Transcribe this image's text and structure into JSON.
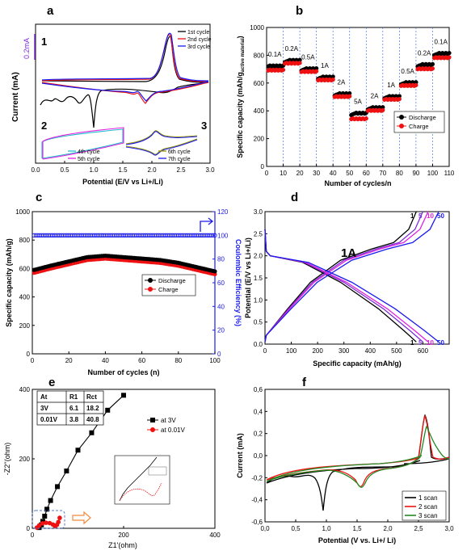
{
  "figure": {
    "panel_letters": [
      "a",
      "b",
      "c",
      "d",
      "e",
      "f"
    ]
  },
  "colors": {
    "black": "#000000",
    "red": "#ee1111",
    "blue": "#1a1aee",
    "magenta": "#e020e0",
    "cyan": "#22bbcc",
    "olive": "#999900",
    "green": "#228822",
    "violet": "#7b2fd6",
    "orange": "#f08a3c"
  },
  "chart_data": [
    {
      "panel": "a",
      "type": "line",
      "xlabel": "Potential (E/V vs Li+/Li)",
      "ylabel": "Current (mA)",
      "xlim": [
        0.0,
        3.0
      ],
      "xticks": [
        "0.0",
        "0.5",
        "1.0",
        "1.5",
        "2.0",
        "2.5",
        "3.0"
      ],
      "scale_bar": "0.2mA",
      "subpanel_labels": [
        "1",
        "2",
        "3"
      ],
      "legends": [
        {
          "entries": [
            "1st cycle",
            "2nd cycle",
            "3rd cycle"
          ]
        },
        {
          "entries": [
            "4th cycle",
            "5th cycle"
          ]
        },
        {
          "entries": [
            "6th cycle",
            "7th cycle"
          ]
        }
      ],
      "series": [
        {
          "name": "1st cycle",
          "color": "#000000"
        },
        {
          "name": "2nd cycle",
          "color": "#ee1111"
        },
        {
          "name": "3rd cycle",
          "color": "#1a1aee"
        },
        {
          "name": "4th cycle",
          "color": "#22bbcc"
        },
        {
          "name": "5th cycle",
          "color": "#e020e0"
        },
        {
          "name": "6th cycle",
          "color": "#999900"
        },
        {
          "name": "7th cycle",
          "color": "#1a1aee"
        }
      ]
    },
    {
      "panel": "b",
      "type": "scatter",
      "xlabel": "Number of cycles/n",
      "ylabel": "Specific capacity (mAh/g",
      "ylabel_sub": "active material",
      "ylabel_end": ")",
      "xlim": [
        0,
        110
      ],
      "ylim": [
        0,
        1000
      ],
      "xticks": [
        0,
        10,
        20,
        30,
        40,
        50,
        60,
        70,
        80,
        90,
        100,
        110
      ],
      "yticks": [
        0,
        200,
        400,
        600,
        800,
        1000
      ],
      "rate_labels": [
        "0.1A",
        "0.2A",
        "0.5A",
        "1A",
        "2A",
        "5A",
        "2A",
        "1A",
        "0.5A",
        "0.2A",
        "0.1A"
      ],
      "legend": [
        "Discharge",
        "Charge"
      ],
      "discharge_plateaus": [
        720,
        760,
        700,
        640,
        520,
        380,
        420,
        500,
        600,
        730,
        810
      ],
      "charge_plateaus": [
        690,
        740,
        680,
        620,
        500,
        340,
        400,
        480,
        580,
        700,
        780
      ]
    },
    {
      "panel": "c",
      "type": "scatter",
      "xlabel": "Number of cycles (n)",
      "ylabel_left": "Specific capacity (mAh/g)",
      "ylabel_right": "Coulombic Efficiency (%)",
      "xlim": [
        0,
        100
      ],
      "ylim_left": [
        0,
        1000
      ],
      "ylim_right": [
        0,
        120
      ],
      "xticks": [
        0,
        20,
        40,
        60,
        80,
        100
      ],
      "yticks_left": [
        0,
        200,
        400,
        600,
        800,
        1000
      ],
      "yticks_right": [
        0,
        20,
        40,
        60,
        80,
        100,
        120
      ],
      "legend": [
        "Discharge",
        "Charge"
      ],
      "coulombic_efficiency": 100,
      "discharge_points": [
        [
          1,
          590
        ],
        [
          10,
          620
        ],
        [
          20,
          650
        ],
        [
          30,
          680
        ],
        [
          40,
          690
        ],
        [
          50,
          680
        ],
        [
          60,
          670
        ],
        [
          70,
          660
        ],
        [
          80,
          640
        ],
        [
          90,
          610
        ],
        [
          100,
          580
        ]
      ],
      "charge_points": [
        [
          1,
          570
        ],
        [
          10,
          600
        ],
        [
          20,
          630
        ],
        [
          30,
          660
        ],
        [
          40,
          670
        ],
        [
          50,
          660
        ],
        [
          60,
          650
        ],
        [
          70,
          640
        ],
        [
          80,
          620
        ],
        [
          90,
          590
        ],
        [
          100,
          560
        ]
      ]
    },
    {
      "panel": "d",
      "type": "line",
      "xlabel": "Specific capacity (mAh/g)",
      "ylabel": "Potential (E/V vs Li+/Li)",
      "xlim": [
        0,
        700
      ],
      "ylim": [
        0.0,
        3.0
      ],
      "xticks": [
        0,
        100,
        200,
        300,
        400,
        500,
        600
      ],
      "yticks": [
        "0.0",
        "0.5",
        "1.0",
        "1.5",
        "2.0",
        "2.5",
        "3.0"
      ],
      "annotation": "1A",
      "cycle_labels": [
        "1",
        "5",
        "10",
        "50"
      ],
      "cycle_colors": [
        "#000000",
        "#7b2fd6",
        "#e020e0",
        "#1a1aee"
      ],
      "end_capacity": [
        575,
        600,
        620,
        660
      ]
    },
    {
      "panel": "e",
      "type": "scatter",
      "xlabel": "Z1'(ohm)",
      "ylabel": "-Z2''(ohm)",
      "xlim": [
        0,
        400
      ],
      "ylim": [
        0,
        400
      ],
      "xticks": [
        0,
        200,
        400
      ],
      "yticks": [
        0,
        200,
        400
      ],
      "table": {
        "headers": [
          "At",
          "R1",
          "Rct"
        ],
        "rows": [
          [
            "3V",
            "6.1",
            "18.2"
          ],
          [
            "0.01V",
            "3.8",
            "40.8"
          ]
        ]
      },
      "legend": [
        "at 3V",
        "at 0.01V"
      ],
      "series": [
        {
          "name": "at 3V",
          "points": [
            [
              15,
              2
            ],
            [
              20,
              10
            ],
            [
              23,
              20
            ],
            [
              27,
              35
            ],
            [
              32,
              55
            ],
            [
              40,
              80
            ],
            [
              55,
              120
            ],
            [
              75,
              165
            ],
            [
              100,
              225
            ],
            [
              130,
              275
            ],
            [
              165,
              340
            ],
            [
              200,
              383
            ]
          ]
        },
        {
          "name": "at 0.01V",
          "points": [
            [
              10,
              2
            ],
            [
              15,
              8
            ],
            [
              22,
              14
            ],
            [
              30,
              16
            ],
            [
              38,
              15
            ],
            [
              45,
              11
            ],
            [
              50,
              6
            ],
            [
              54,
              10
            ],
            [
              57,
              18
            ],
            [
              60,
              30
            ]
          ]
        }
      ]
    },
    {
      "panel": "f",
      "type": "line",
      "xlabel": "Potential (V vs. Li+/ Li)",
      "ylabel": "Current (mA)",
      "xlim": [
        0.0,
        3.0
      ],
      "ylim": [
        -0.6,
        0.6
      ],
      "xticks": [
        "0,0",
        "0,5",
        "1,0",
        "1,5",
        "2,0",
        "2,5",
        "3,0"
      ],
      "yticks": [
        "-0,6",
        "-0,4",
        "-0,2",
        "0,0",
        "0,2",
        "0,4",
        "0,6"
      ],
      "legend": [
        "1 scan",
        "2 scan",
        "3 scan"
      ],
      "series": [
        {
          "name": "1 scan",
          "color": "#000000"
        },
        {
          "name": "2 scan",
          "color": "#ee1111"
        },
        {
          "name": "3 scan",
          "color": "#228822"
        }
      ]
    }
  ]
}
